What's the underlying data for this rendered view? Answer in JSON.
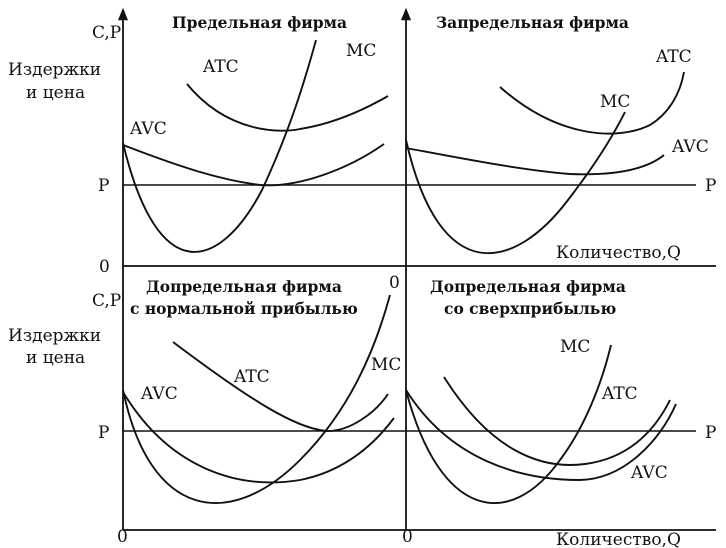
{
  "left_axis": {
    "y_label_top": "C,P",
    "y_desc_line1": "Издержки",
    "y_desc_line2": "и цена",
    "y_label_bottom": "C,P",
    "y_desc_bottom_line1": "Издержки",
    "y_desc_bottom_line2": "и цена",
    "price_label": "P",
    "zero_label": "0"
  },
  "quantity_label": "Количество,Q",
  "panels": [
    {
      "title_lines": [
        "Предельная фирма"
      ],
      "curve_labels": [
        "ATC",
        "MC",
        "AVC"
      ],
      "price_label": "P",
      "zero_label": "0"
    },
    {
      "title_lines": [
        "Запредельная фирма"
      ],
      "curve_labels": [
        "ATC",
        "MC",
        "AVC"
      ],
      "price_label": "P",
      "zero_label": "0",
      "quantity_label": "Количество,Q"
    },
    {
      "title_lines": [
        "Допредельная фирма",
        "с нормальной прибылью"
      ],
      "curve_labels": [
        "AVC",
        "ATC",
        "MC"
      ],
      "price_label": "P",
      "zero_label": "0"
    },
    {
      "title_lines": [
        "Допредельная фирма",
        "со сверхприбылью"
      ],
      "curve_labels": [
        "MC",
        "ATC",
        "AVC"
      ],
      "price_label": "P",
      "zero_label": "0",
      "quantity_label": "Количество,Q"
    }
  ]
}
